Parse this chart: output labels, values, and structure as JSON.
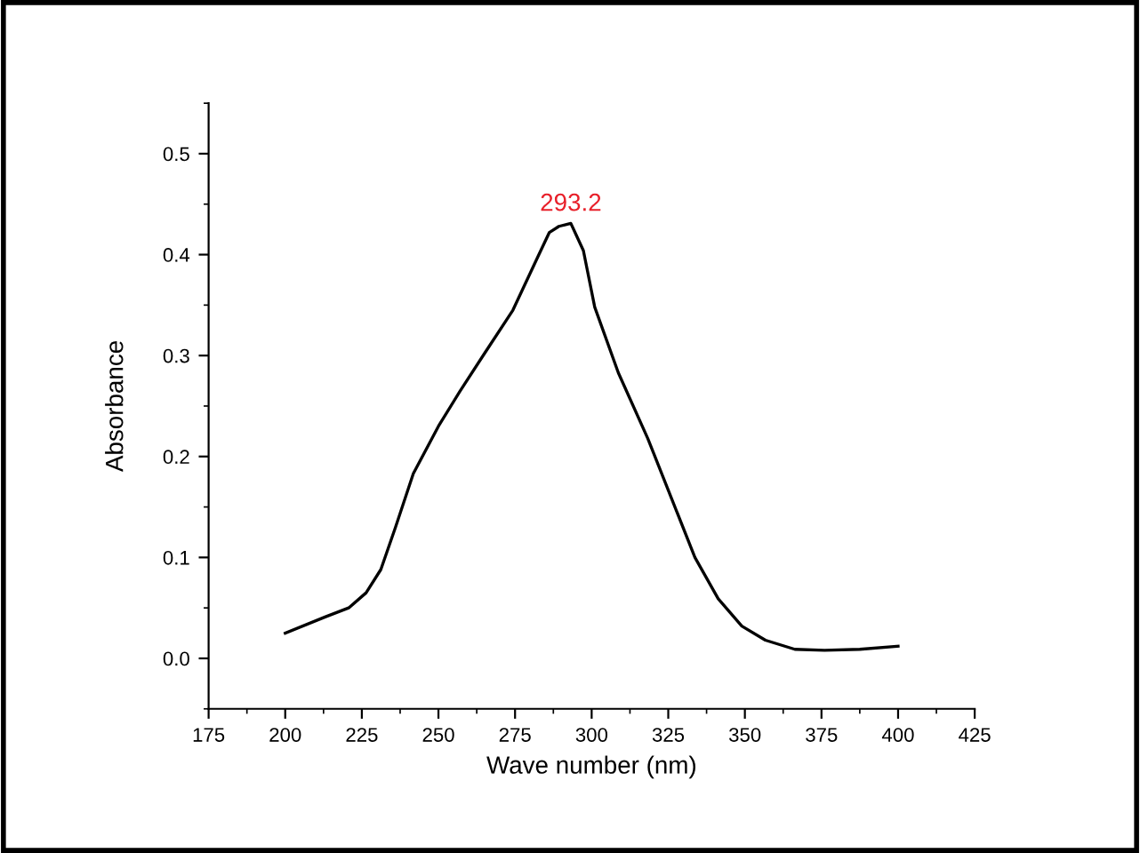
{
  "chart_data": {
    "type": "line",
    "xlabel": "Wave number (nm)",
    "ylabel": "Absorbance",
    "xlim": [
      175,
      425
    ],
    "ylim": [
      -0.05,
      0.55
    ],
    "xticks": [
      175,
      200,
      225,
      250,
      275,
      300,
      325,
      350,
      375,
      400,
      425
    ],
    "yticks": [
      {
        "value": 0,
        "label": "0.0"
      },
      0.1,
      0.2,
      0.3,
      0.4,
      0.5
    ],
    "grid": false,
    "marker": "none",
    "line_style": "solid",
    "annotations": [
      {
        "text": "293.2",
        "x": 293.2,
        "y": 0.431
      }
    ],
    "series": [
      {
        "color": "#000000",
        "x": [
          200,
          213,
          220.7,
          226.4,
          231.2,
          236,
          241.8,
          250,
          257.1,
          264.8,
          274.3,
          282,
          286.2,
          289.3,
          293.2,
          297.3,
          301,
          308.7,
          318.3,
          326,
          333.7,
          341.3,
          349,
          356.7,
          366.3,
          376,
          387.5,
          400
        ],
        "values": [
          0.025,
          0.041,
          0.05,
          0.065,
          0.088,
          0.13,
          0.183,
          0.23,
          0.265,
          0.301,
          0.345,
          0.395,
          0.422,
          0.428,
          0.431,
          0.404,
          0.348,
          0.283,
          0.218,
          0.159,
          0.1,
          0.059,
          0.032,
          0.018,
          0.009,
          0.008,
          0.009,
          0.012
        ]
      }
    ]
  }
}
